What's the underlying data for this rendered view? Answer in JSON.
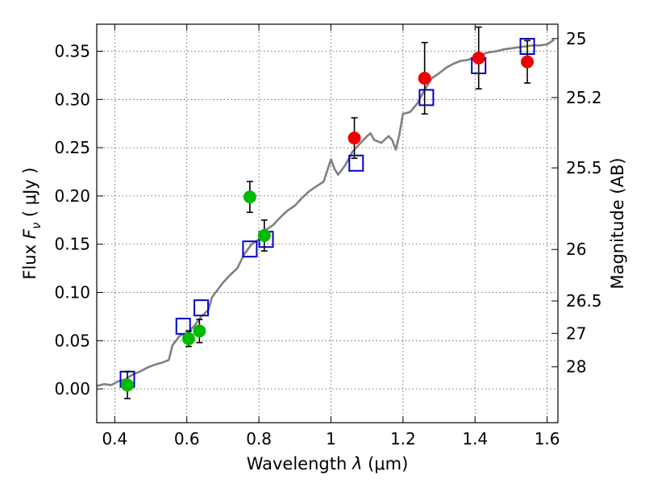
{
  "chart_data": {
    "type": "scatter",
    "xlabel": "Wavelength",
    "xlabel_symbol": "λ",
    "xlabel_unit": "(μm)",
    "ylabel": "Flux",
    "ylabel_symbol": "F",
    "ylabel_symbol_sub": "ν",
    "ylabel_unit": "( μJy )",
    "y2label": "Magnitude (AB)",
    "xlim": [
      0.35,
      1.63
    ],
    "ylim": [
      -0.035,
      0.378
    ],
    "grid": true,
    "x_ticks": [
      0.4,
      0.6,
      0.8,
      1.0,
      1.2,
      1.4,
      1.6
    ],
    "x_tick_labels": [
      "0.4",
      "0.6",
      "0.8",
      "1",
      "1.2",
      "1.4",
      "1.6"
    ],
    "y_ticks": [
      0.0,
      0.05,
      0.1,
      0.15,
      0.2,
      0.25,
      0.3,
      0.35
    ],
    "y_tick_labels": [
      "0.00",
      "0.05",
      "0.10",
      "0.15",
      "0.20",
      "0.25",
      "0.30",
      "0.35"
    ],
    "mag_ticks": [
      25,
      25.2,
      25.5,
      26,
      26.5,
      27,
      28
    ],
    "mag_tick_labels": [
      "25",
      "25.2",
      "25.5",
      "26",
      "26.5",
      "27",
      "28"
    ],
    "series": [
      {
        "kind": "line",
        "color": "#808080",
        "x": [
          0.35,
          0.37,
          0.39,
          0.41,
          0.43,
          0.45,
          0.47,
          0.49,
          0.51,
          0.53,
          0.55,
          0.56,
          0.57,
          0.58,
          0.6,
          0.62,
          0.64,
          0.66,
          0.67,
          0.68,
          0.7,
          0.72,
          0.74,
          0.76,
          0.78,
          0.8,
          0.82,
          0.84,
          0.86,
          0.88,
          0.9,
          0.92,
          0.94,
          0.96,
          0.98,
          1.0,
          1.01,
          1.02,
          1.04,
          1.06,
          1.08,
          1.1,
          1.11,
          1.12,
          1.14,
          1.16,
          1.17,
          1.18,
          1.19,
          1.2,
          1.22,
          1.24,
          1.26,
          1.28,
          1.3,
          1.32,
          1.34,
          1.36,
          1.38,
          1.4,
          1.42,
          1.44,
          1.46,
          1.48,
          1.5,
          1.52,
          1.54,
          1.56,
          1.58,
          1.6,
          1.62
        ],
        "y": [
          0.003,
          0.005,
          0.004,
          0.008,
          0.01,
          0.015,
          0.018,
          0.022,
          0.025,
          0.027,
          0.03,
          0.045,
          0.05,
          0.055,
          0.058,
          0.065,
          0.075,
          0.082,
          0.095,
          0.1,
          0.11,
          0.118,
          0.125,
          0.14,
          0.15,
          0.155,
          0.165,
          0.17,
          0.178,
          0.185,
          0.19,
          0.198,
          0.205,
          0.21,
          0.215,
          0.238,
          0.228,
          0.222,
          0.232,
          0.246,
          0.254,
          0.262,
          0.265,
          0.258,
          0.255,
          0.262,
          0.258,
          0.248,
          0.264,
          0.285,
          0.287,
          0.296,
          0.31,
          0.322,
          0.327,
          0.333,
          0.337,
          0.34,
          0.341,
          0.344,
          0.347,
          0.349,
          0.35,
          0.352,
          0.353,
          0.354,
          0.355,
          0.356,
          0.356,
          0.357,
          0.362
        ]
      },
      {
        "kind": "marker",
        "marker": "square-open",
        "color": "#0000cc",
        "x": [
          0.435,
          0.59,
          0.64,
          0.775,
          0.82,
          1.07,
          1.265,
          1.41,
          1.545
        ],
        "y": [
          0.01,
          0.065,
          0.084,
          0.145,
          0.155,
          0.234,
          0.302,
          0.335,
          0.355
        ]
      },
      {
        "kind": "marker",
        "marker": "circle",
        "color": "#00bb00",
        "x": [
          0.435,
          0.605,
          0.635,
          0.775,
          0.815
        ],
        "y": [
          0.004,
          0.052,
          0.06,
          0.199,
          0.159
        ],
        "yerr": [
          0.014,
          0.008,
          0.012,
          0.016,
          0.016
        ]
      },
      {
        "kind": "marker",
        "marker": "circle",
        "color": "#ee0000",
        "x": [
          1.065,
          1.26,
          1.41,
          1.545
        ],
        "y": [
          0.26,
          0.322,
          0.343,
          0.339
        ],
        "yerr": [
          0.021,
          0.037,
          0.032,
          0.022
        ]
      }
    ]
  }
}
